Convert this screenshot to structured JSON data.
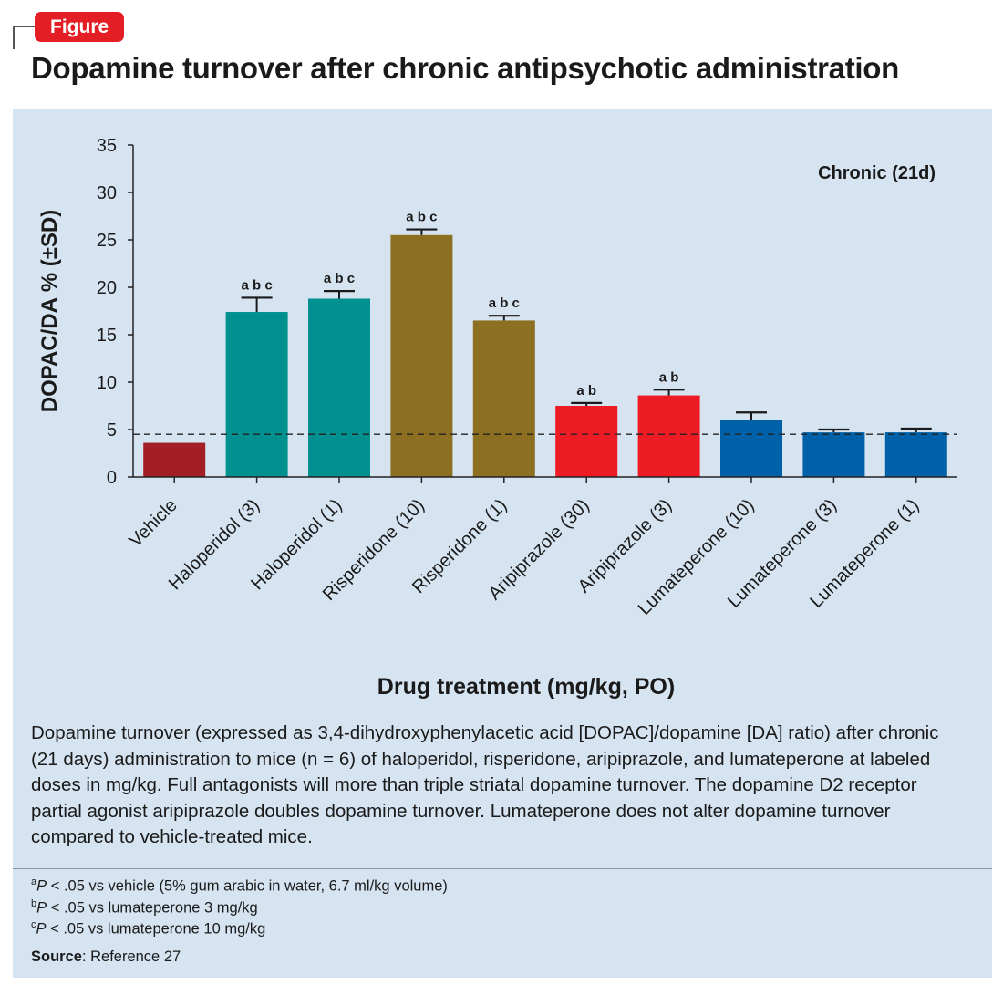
{
  "badge": "Figure",
  "title": "Dopamine turnover after chronic antipsychotic administration",
  "caption": "Dopamine turnover (expressed as 3,4-dihydroxyphenylacetic acid [DOPAC]/dopamine [DA] ratio) after chronic (21 days) administration to mice (n = 6) of haloperidol, risperidone, aripiprazole, and lumateperone at labeled doses in mg/kg. Full antagonists will more than triple striatal dopamine turnover. The dopamine D2 receptor partial agonist aripiprazole doubles dopamine turnover. Lumateperone does not alter dopamine turnover compared to vehicle-treated mice.",
  "footnotes": [
    {
      "mark": "a",
      "p": "P",
      "text": " < .05 vs vehicle (5% gum arabic in water, 6.7 ml/kg volume)"
    },
    {
      "mark": "b",
      "p": "P",
      "text": " < .05 vs lumateperone 3 mg/kg"
    },
    {
      "mark": "c",
      "p": "P",
      "text": " < .05 vs lumateperone 10 mg/kg"
    }
  ],
  "source": {
    "label": "Source",
    "text": ": Reference 27"
  },
  "chart_data": {
    "type": "bar",
    "annotation": "Chronic (21d)",
    "xlabel": "Drug treatment (mg/kg, PO)",
    "ylabel": "DOPAC/DA % (±SD)",
    "ylim": [
      0,
      35
    ],
    "yticks": [
      0,
      5,
      10,
      15,
      20,
      25,
      30,
      35
    ],
    "reference_line": 4.5,
    "categories": [
      "Vehicle",
      "Haloperidol (3)",
      "Haloperidol (1)",
      "Risperidone (10)",
      "Risperidone (1)",
      "Aripiprazole (30)",
      "Aripiprazole (3)",
      "Lumateperone (10)",
      "Lumateperone (3)",
      "Lumateperone (1)"
    ],
    "values": [
      3.6,
      17.4,
      18.8,
      25.5,
      16.5,
      7.5,
      8.6,
      6.0,
      4.7,
      4.7
    ],
    "errors": [
      0.0,
      1.5,
      0.8,
      0.6,
      0.5,
      0.3,
      0.6,
      0.8,
      0.3,
      0.4
    ],
    "sig_labels": [
      "",
      "a b c",
      "a b c",
      "a b c",
      "a b c",
      "a b",
      "a b",
      "",
      "",
      ""
    ],
    "colors": [
      "#a31f28",
      "#009090",
      "#009090",
      "#8c6f21",
      "#8c6f21",
      "#ed1c24",
      "#ed1c24",
      "#0061a8",
      "#0061a8",
      "#0061a8"
    ]
  }
}
